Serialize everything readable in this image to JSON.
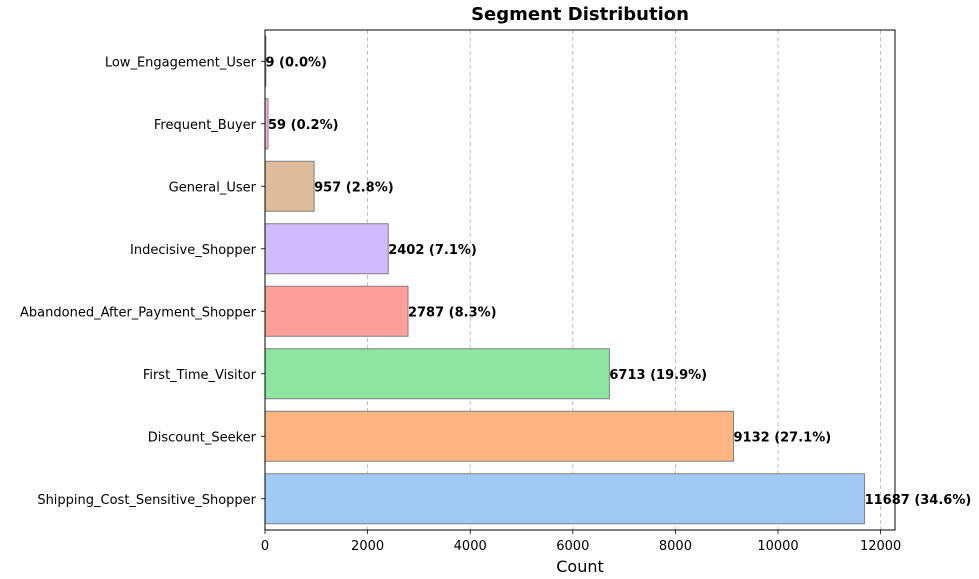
{
  "chart_data": {
    "type": "bar",
    "orientation": "horizontal",
    "title": "Segment Distribution",
    "xlabel": "Count",
    "ylabel": "",
    "xlim": [
      0,
      12280
    ],
    "xticks": [
      0,
      2000,
      4000,
      6000,
      8000,
      10000,
      12000
    ],
    "grid": "x, dashed",
    "categories": [
      "Shipping_Cost_Sensitive_Shopper",
      "Discount_Seeker",
      "First_Time_Visitor",
      "Abandoned_After_Payment_Shopper",
      "Indecisive_Shopper",
      "General_User",
      "Frequent_Buyer",
      "Low_Engagement_User"
    ],
    "values": [
      11687,
      9132,
      6713,
      2787,
      2402,
      957,
      59,
      9
    ],
    "data_labels": [
      "11687 (34.6%)",
      "9132 (27.1%)",
      "6713 (19.9%)",
      "2787 (8.3%)",
      "2402 (7.1%)",
      "957 (2.8%)",
      "59 (0.2%)",
      "9 (0.0%)"
    ],
    "colors": [
      "#a1c9f4",
      "#ffb482",
      "#8de5a1",
      "#ff9f9b",
      "#d0bbff",
      "#debb9b",
      "#fab0e4",
      "#cfcfcf"
    ]
  }
}
